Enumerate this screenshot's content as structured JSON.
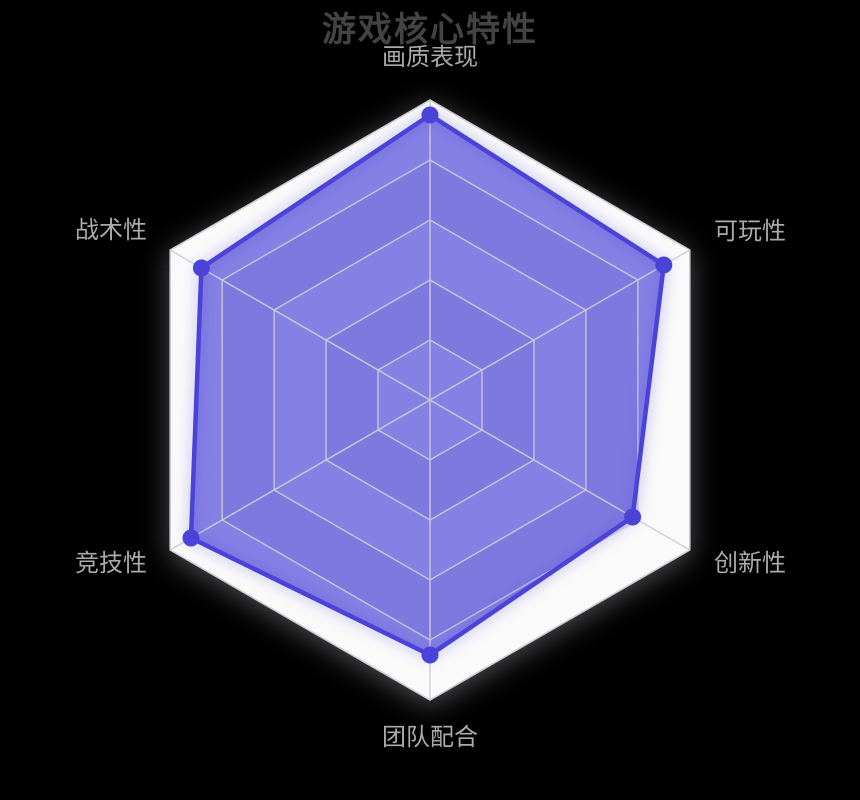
{
  "chart_data": {
    "type": "radar",
    "title": "游戏核心特性",
    "shape": "hexagon",
    "max": 100,
    "levels": 5,
    "indicators": [
      {
        "name": "画质表现",
        "max": 100
      },
      {
        "name": "可玩性",
        "max": 100
      },
      {
        "name": "创新性",
        "max": 100
      },
      {
        "name": "团队配合",
        "max": 100
      },
      {
        "name": "竞技性",
        "max": 100
      },
      {
        "name": "战术性",
        "max": 100
      }
    ],
    "series": [
      {
        "values": [
          95,
          90,
          78,
          85,
          92,
          88
        ]
      }
    ],
    "layout": {
      "legend_position": "none",
      "grid": true,
      "split_area_alternating": true,
      "first_axis": "top"
    }
  },
  "colors": {
    "background": "#000000",
    "band_light": "#fafafa",
    "band_dark": "#e7e7ec",
    "outer_border": "#cfcfd4",
    "grid_line": "rgba(205,205,213,0.9)",
    "series_line": "#4b43d8",
    "series_fill": "rgba(77,70,216,0.68)",
    "point_color": "#4b43d8",
    "title_color": "#434343",
    "label_color": "#aaaaaa"
  }
}
